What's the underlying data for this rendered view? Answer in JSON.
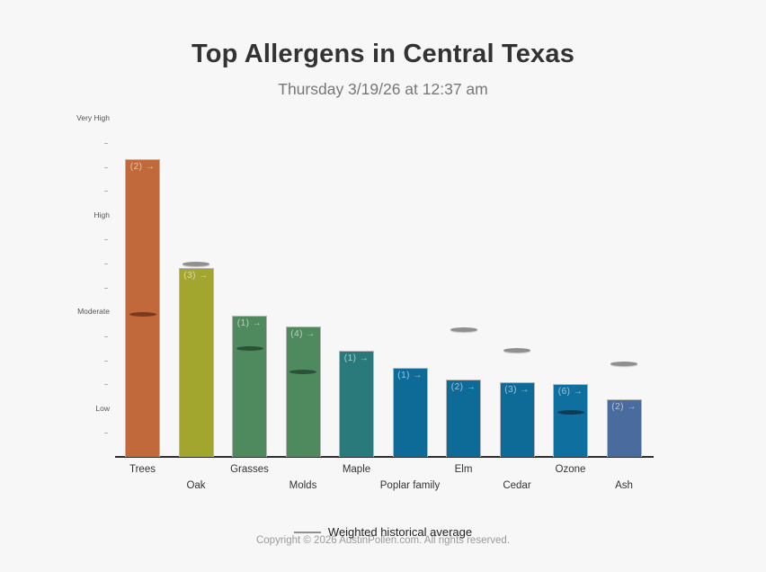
{
  "page": {
    "background": "#f7f7f7"
  },
  "header": {
    "title": "Top Allergens in Central Texas",
    "subtitle": "Thursday 3/19/26 at 12:37 am"
  },
  "legend": {
    "label": "Weighted historical average",
    "symbol": "line",
    "line_color": "#8f8f8f"
  },
  "footer": {
    "copyright": "Copyright © 2026 AustinPollen.com.  All rights reserved."
  },
  "chart_data": {
    "type": "bar",
    "title": "Top Allergens in Central Texas",
    "subtitle": "Thursday 3/19/26 at 12:37 am",
    "xlabel": "",
    "ylabel": "",
    "ylim": [
      0,
      14.5
    ],
    "grid": false,
    "legend_position": "bottom-center",
    "value_scale": {
      "description": "qualitative pollen level axis, minor tick each unit",
      "levels": [
        {
          "label": "Very High",
          "value": 14
        },
        {
          "label": "High",
          "value": 10
        },
        {
          "label": "Moderate",
          "value": 6
        },
        {
          "label": "Low",
          "value": 2
        }
      ],
      "max_tick": 14
    },
    "categories": [
      "Trees",
      "Oak",
      "Grasses",
      "Molds",
      "Maple",
      "Poplar family",
      "Elm",
      "Cedar",
      "Ozone",
      "Ash"
    ],
    "bars": [
      {
        "category": "Trees",
        "badge": "(2) →",
        "value": 12.3,
        "historical_avg": 5.9,
        "avg_placement": "inside",
        "color": "#c1693a",
        "avg_color": "#7a3a1d",
        "label_row": 1
      },
      {
        "category": "Oak",
        "badge": "(3) →",
        "value": 7.8,
        "historical_avg": 8.0,
        "avg_placement": "above",
        "color": "#a2a52e",
        "avg_color": "#8f8f8f",
        "label_row": 2
      },
      {
        "category": "Grasses",
        "badge": "(1) →",
        "value": 5.85,
        "historical_avg": 4.5,
        "avg_placement": "inside",
        "color": "#4e8a5d",
        "avg_color": "#2c5038",
        "label_row": 1
      },
      {
        "category": "Molds",
        "badge": "(4) →",
        "value": 5.4,
        "historical_avg": 3.5,
        "avg_placement": "inside",
        "color": "#4e8a5d",
        "avg_color": "#2c5038",
        "label_row": 2
      },
      {
        "category": "Maple",
        "badge": "(1) →",
        "value": 4.4,
        "historical_avg": null,
        "avg_placement": "none",
        "color": "#2a7a7b",
        "avg_color": null,
        "label_row": 1
      },
      {
        "category": "Poplar family",
        "badge": "(1) →",
        "value": 3.7,
        "historical_avg": null,
        "avg_placement": "none",
        "color": "#0e6a97",
        "avg_color": null,
        "label_row": 2
      },
      {
        "category": "Elm",
        "badge": "(2) →",
        "value": 3.2,
        "historical_avg": 5.25,
        "avg_placement": "above",
        "color": "#0e6a97",
        "avg_color": "#8f8f8f",
        "label_row": 1
      },
      {
        "category": "Cedar",
        "badge": "(3) →",
        "value": 3.1,
        "historical_avg": 4.4,
        "avg_placement": "above",
        "color": "#0e6a97",
        "avg_color": "#8f8f8f",
        "label_row": 2
      },
      {
        "category": "Ozone",
        "badge": "(6) →",
        "value": 3.0,
        "historical_avg": 1.85,
        "avg_placement": "inside",
        "color": "#0f6f9f",
        "avg_color": "#0a3c58",
        "label_row": 1
      },
      {
        "category": "Ash",
        "badge": "(2) →",
        "value": 2.4,
        "historical_avg": 3.85,
        "avg_placement": "above",
        "color": "#4a6b9e",
        "avg_color": "#8f8f8f",
        "label_row": 2
      }
    ]
  }
}
